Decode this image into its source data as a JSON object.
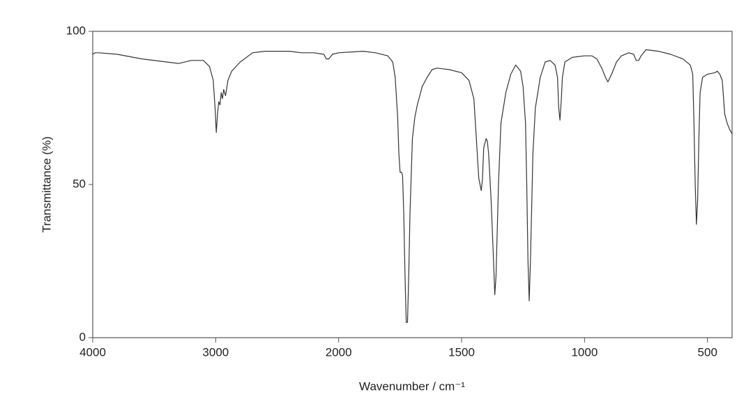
{
  "chart_data": {
    "type": "line",
    "ylabel": "Transmittance (%)",
    "xlabel": "Wavenumber / cm⁻¹",
    "color": "#333333",
    "xscale": "piecewise",
    "xlim": [
      4000,
      400
    ],
    "xticks": [
      4000,
      3000,
      2000,
      1500,
      1000,
      500
    ],
    "ylim": [
      0,
      100
    ],
    "yticks": [
      0,
      50,
      100
    ],
    "x": [
      4000,
      3980,
      3950,
      3800,
      3600,
      3400,
      3300,
      3200,
      3100,
      3050,
      3020,
      3005,
      2995,
      2985,
      2975,
      2965,
      2955,
      2945,
      2935,
      2920,
      2900,
      2870,
      2800,
      2700,
      2600,
      2500,
      2400,
      2300,
      2200,
      2120,
      2100,
      2080,
      2050,
      2000,
      1900,
      1850,
      1800,
      1780,
      1770,
      1760,
      1755,
      1750,
      1745,
      1740,
      1735,
      1730,
      1725,
      1720,
      1715,
      1710,
      1700,
      1690,
      1680,
      1660,
      1640,
      1620,
      1600,
      1550,
      1500,
      1470,
      1450,
      1440,
      1430,
      1420,
      1415,
      1410,
      1400,
      1395,
      1390,
      1380,
      1370,
      1365,
      1360,
      1350,
      1340,
      1320,
      1300,
      1280,
      1260,
      1250,
      1240,
      1235,
      1230,
      1225,
      1220,
      1210,
      1200,
      1180,
      1160,
      1140,
      1120,
      1110,
      1105,
      1100,
      1095,
      1090,
      1080,
      1050,
      1000,
      970,
      950,
      930,
      915,
      905,
      890,
      870,
      850,
      820,
      800,
      790,
      780,
      770,
      750,
      700,
      650,
      600,
      570,
      560,
      555,
      550,
      545,
      540,
      535,
      530,
      520,
      500,
      470,
      460,
      450,
      440,
      430,
      420,
      410,
      400
    ],
    "values": [
      92.5,
      93,
      93,
      92.5,
      91,
      90,
      89.5,
      90.5,
      90.5,
      88.5,
      84,
      75,
      67,
      73,
      77,
      76,
      80,
      78,
      81,
      79,
      84,
      87,
      90,
      93,
      93.5,
      93.5,
      93.5,
      93,
      93,
      92.5,
      91,
      91,
      92.5,
      93,
      93.5,
      93,
      92,
      90,
      85,
      72,
      60,
      54,
      54,
      53,
      40,
      20,
      5,
      5,
      20,
      40,
      65,
      72,
      76,
      82,
      85,
      87.5,
      88,
      87.5,
      86.5,
      84,
      78,
      65,
      52,
      48,
      52,
      62,
      65,
      64,
      60,
      45,
      25,
      14,
      20,
      50,
      70,
      80,
      86,
      89,
      87,
      82,
      70,
      50,
      25,
      12,
      25,
      60,
      75,
      85,
      90,
      90.5,
      89,
      85,
      75,
      71,
      77,
      85,
      90,
      91.5,
      92,
      92,
      91,
      88,
      85,
      83.5,
      86,
      90,
      92,
      93,
      92.5,
      90.5,
      90.5,
      92,
      94,
      93.5,
      92.5,
      91,
      89,
      86,
      70,
      50,
      37,
      45,
      65,
      80,
      85,
      86,
      86.5,
      87,
      86,
      84,
      73,
      70,
      68,
      66.5
    ]
  }
}
